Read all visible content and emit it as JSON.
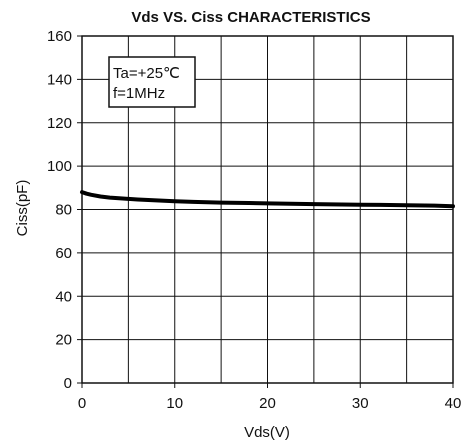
{
  "chart_data": {
    "type": "line",
    "title": "Vds  VS. Ciss CHARACTERISTICS",
    "xlabel": "Vds(V)",
    "ylabel": "Ciss(pF)",
    "xlim": [
      0,
      40
    ],
    "ylim": [
      0,
      160
    ],
    "xticks": [
      0,
      10,
      20,
      30,
      40
    ],
    "yticks": [
      0,
      20,
      40,
      60,
      80,
      100,
      120,
      140,
      160
    ],
    "xtick_labels": [
      "0",
      "10",
      "20",
      "30",
      "40"
    ],
    "ytick_labels": [
      "0",
      "20",
      "40",
      "60",
      "80",
      "100",
      "120",
      "140",
      "160"
    ],
    "grid": true,
    "annotation": {
      "lines": [
        "Ta=+25℃",
        "f=1MHz"
      ],
      "placement": "top-left"
    },
    "series": [
      {
        "color": "#000000",
        "x": [
          0,
          0.5,
          1,
          2,
          3,
          4,
          5,
          6,
          8,
          10,
          12,
          15,
          18,
          20,
          25,
          30,
          35,
          38,
          40
        ],
        "y": [
          88,
          87.3,
          86.8,
          86,
          85.5,
          85.2,
          84.9,
          84.6,
          84.2,
          83.8,
          83.5,
          83.2,
          83,
          82.8,
          82.5,
          82.2,
          82,
          81.8,
          81.5
        ]
      }
    ]
  }
}
